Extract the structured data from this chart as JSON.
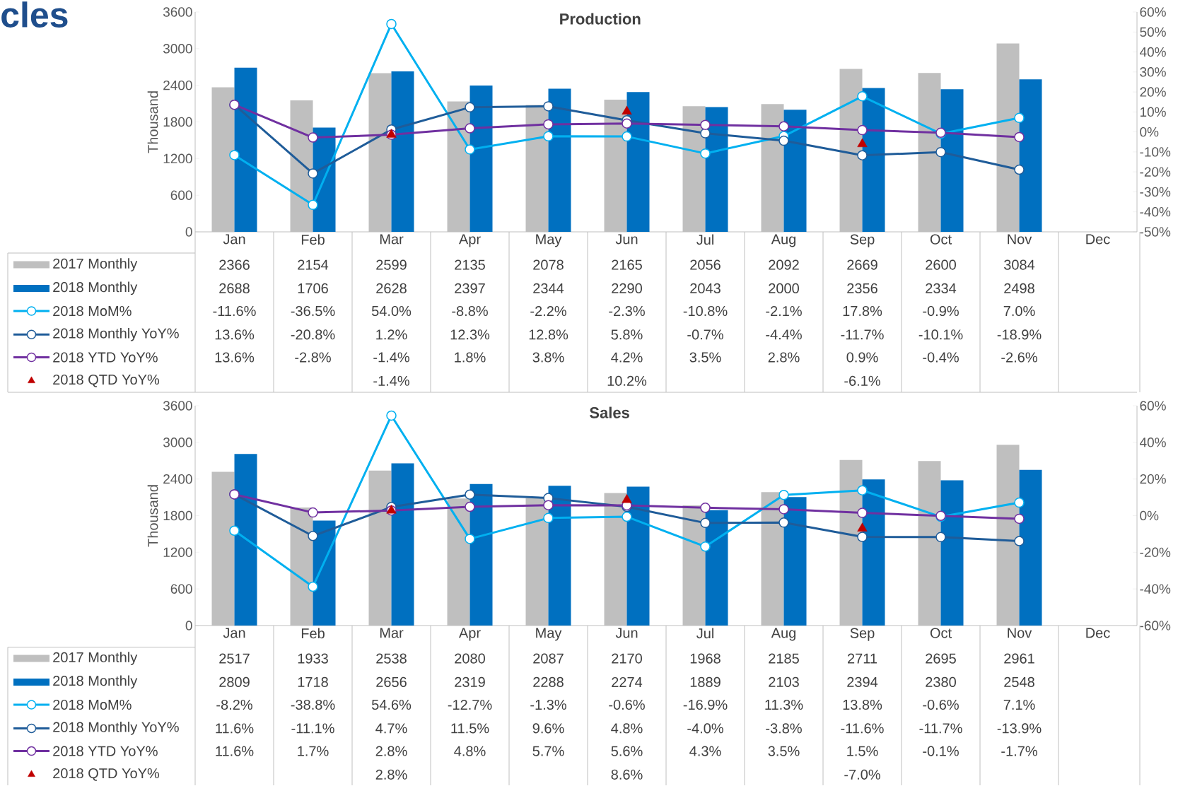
{
  "chart_data": [
    {
      "type": "bar",
      "title": "Production",
      "ylabel": "Thousand",
      "annotations": [
        "cles"
      ],
      "legend": "bottom",
      "categories": [
        "Jan",
        "Feb",
        "Mar",
        "Apr",
        "May",
        "Jun",
        "Jul",
        "Aug",
        "Sep",
        "Oct",
        "Nov",
        "Dec"
      ],
      "ylim": [
        0,
        3600
      ],
      "yticks": [
        0,
        600,
        1200,
        1800,
        2400,
        3000,
        3600
      ],
      "y2lim": [
        -50,
        60
      ],
      "y2ticks": [
        {
          "value": -50,
          "label": "-50%"
        },
        {
          "value": -40,
          "label": "-40%"
        },
        {
          "value": -30,
          "label": "-30%"
        },
        {
          "value": -20,
          "label": "-20%"
        },
        {
          "value": -10,
          "label": "-10%"
        },
        {
          "value": 0,
          "label": "0%"
        },
        {
          "value": 10,
          "label": "10%"
        },
        {
          "value": 20,
          "label": "20%"
        },
        {
          "value": 30,
          "label": "30%"
        },
        {
          "value": 40,
          "label": "40%"
        },
        {
          "value": 50,
          "label": "50%"
        },
        {
          "value": 60,
          "label": "60%"
        }
      ],
      "series": [
        {
          "name": "2017 Monthly",
          "color": "#bfbfbf",
          "values": [
            2366,
            2154,
            2599,
            2135,
            2078,
            2165,
            2056,
            2092,
            2669,
            2600,
            3084,
            null
          ],
          "value_labels": [
            "2366",
            "2154",
            "2599",
            "2135",
            "2078",
            "2165",
            "2056",
            "2092",
            "2669",
            "2600",
            "3084",
            null
          ]
        },
        {
          "name": "2018 Monthly",
          "color": "#0070c0",
          "values": [
            2688,
            1706,
            2628,
            2397,
            2344,
            2290,
            2043,
            2000,
            2356,
            2334,
            2498,
            null
          ],
          "value_labels": [
            "2688",
            "1706",
            "2628",
            "2397",
            "2344",
            "2290",
            "2043",
            "2000",
            "2356",
            "2334",
            "2498",
            null
          ]
        },
        {
          "name": "2018 MoM%",
          "type": "line",
          "axis": "y2",
          "marker": "circle",
          "color": "#00b0f0",
          "values": [
            -11.6,
            -36.5,
            54.0,
            -8.8,
            -2.2,
            -2.3,
            -10.8,
            -2.1,
            17.8,
            -0.9,
            7.0,
            null
          ],
          "value_labels": [
            "-11.6%",
            "-36.5%",
            "54.0%",
            "-8.8%",
            "-2.2%",
            "-2.3%",
            "-10.8%",
            "-2.1%",
            "17.8%",
            "-0.9%",
            "7.0%",
            null
          ]
        },
        {
          "name": "2018 Monthly YoY%",
          "type": "line",
          "axis": "y2",
          "marker": "circle",
          "color": "#1f5c99",
          "values": [
            13.6,
            -20.8,
            1.2,
            12.3,
            12.8,
            5.8,
            -0.7,
            -4.4,
            -11.7,
            -10.1,
            -18.9,
            null
          ],
          "value_labels": [
            "13.6%",
            "-20.8%",
            "1.2%",
            "12.3%",
            "12.8%",
            "5.8%",
            "-0.7%",
            "-4.4%",
            "-11.7%",
            "-10.1%",
            "-18.9%",
            null
          ]
        },
        {
          "name": "2018 YTD YoY%",
          "type": "line",
          "axis": "y2",
          "marker": "circle",
          "color": "#7030a0",
          "values": [
            13.6,
            -2.8,
            -1.4,
            1.8,
            3.8,
            4.2,
            3.5,
            2.8,
            0.9,
            -0.4,
            -2.6,
            null
          ],
          "value_labels": [
            "13.6%",
            "-2.8%",
            "-1.4%",
            "1.8%",
            "3.8%",
            "4.2%",
            "3.5%",
            "2.8%",
            "0.9%",
            "-0.4%",
            "-2.6%",
            null
          ]
        },
        {
          "name": "2018 QTD YoY%",
          "type": "scatter",
          "axis": "y2",
          "marker": "triangle",
          "color": "#c00000",
          "values": [
            null,
            null,
            -1.4,
            null,
            null,
            10.2,
            null,
            null,
            -6.1,
            null,
            null,
            null
          ],
          "value_labels": [
            null,
            null,
            "-1.4%",
            null,
            null,
            "10.2%",
            null,
            null,
            "-6.1%",
            null,
            null,
            null
          ]
        }
      ]
    },
    {
      "type": "bar",
      "title": "Sales",
      "ylabel": "Thousand",
      "legend": "bottom",
      "categories": [
        "Jan",
        "Feb",
        "Mar",
        "Apr",
        "May",
        "Jun",
        "Jul",
        "Aug",
        "Sep",
        "Oct",
        "Nov",
        "Dec"
      ],
      "ylim": [
        0,
        3600
      ],
      "yticks": [
        0,
        600,
        1200,
        1800,
        2400,
        3000,
        3600
      ],
      "y2lim": [
        -60,
        60
      ],
      "y2ticks": [
        {
          "value": -60,
          "label": "-60%"
        },
        {
          "value": -40,
          "label": "-40%"
        },
        {
          "value": -20,
          "label": "-20%"
        },
        {
          "value": 0,
          "label": "0%"
        },
        {
          "value": 20,
          "label": "20%"
        },
        {
          "value": 40,
          "label": "40%"
        },
        {
          "value": 60,
          "label": "60%"
        }
      ],
      "series": [
        {
          "name": "2017 Monthly",
          "color": "#bfbfbf",
          "values": [
            2517,
            1933,
            2538,
            2080,
            2087,
            2170,
            1968,
            2185,
            2711,
            2695,
            2961,
            null
          ],
          "value_labels": [
            "2517",
            "1933",
            "2538",
            "2080",
            "2087",
            "2170",
            "1968",
            "2185",
            "2711",
            "2695",
            "2961",
            null
          ]
        },
        {
          "name": "2018 Monthly",
          "color": "#0070c0",
          "values": [
            2809,
            1718,
            2656,
            2319,
            2288,
            2274,
            1889,
            2103,
            2394,
            2380,
            2548,
            null
          ],
          "value_labels": [
            "2809",
            "1718",
            "2656",
            "2319",
            "2288",
            "2274",
            "1889",
            "2103",
            "2394",
            "2380",
            "2548",
            null
          ]
        },
        {
          "name": "2018 MoM%",
          "type": "line",
          "axis": "y2",
          "marker": "circle",
          "color": "#00b0f0",
          "values": [
            -8.2,
            -38.8,
            54.6,
            -12.7,
            -1.3,
            -0.6,
            -16.9,
            11.3,
            13.8,
            -0.6,
            7.1,
            null
          ],
          "value_labels": [
            "-8.2%",
            "-38.8%",
            "54.6%",
            "-12.7%",
            "-1.3%",
            "-0.6%",
            "-16.9%",
            "11.3%",
            "13.8%",
            "-0.6%",
            "7.1%",
            null
          ]
        },
        {
          "name": "2018 Monthly YoY%",
          "type": "line",
          "axis": "y2",
          "marker": "circle",
          "color": "#1f5c99",
          "values": [
            11.6,
            -11.1,
            4.7,
            11.5,
            9.6,
            4.8,
            -4.0,
            -3.8,
            -11.6,
            -11.7,
            -13.9,
            null
          ],
          "value_labels": [
            "11.6%",
            "-11.1%",
            "4.7%",
            "11.5%",
            "9.6%",
            "4.8%",
            "-4.0%",
            "-3.8%",
            "-11.6%",
            "-11.7%",
            "-13.9%",
            null
          ]
        },
        {
          "name": "2018 YTD YoY%",
          "type": "line",
          "axis": "y2",
          "marker": "circle",
          "color": "#7030a0",
          "values": [
            11.6,
            1.7,
            2.8,
            4.8,
            5.7,
            5.6,
            4.3,
            3.5,
            1.5,
            -0.1,
            -1.7,
            null
          ],
          "value_labels": [
            "11.6%",
            "1.7%",
            "2.8%",
            "4.8%",
            "5.7%",
            "5.6%",
            "4.3%",
            "3.5%",
            "1.5%",
            "-0.1%",
            "-1.7%",
            null
          ]
        },
        {
          "name": "2018 QTD YoY%",
          "type": "scatter",
          "axis": "y2",
          "marker": "triangle",
          "color": "#c00000",
          "values": [
            null,
            null,
            2.8,
            null,
            null,
            8.6,
            null,
            null,
            -7.0,
            null,
            null,
            null
          ],
          "value_labels": [
            null,
            null,
            "2.8%",
            null,
            null,
            "8.6%",
            null,
            null,
            "-7.0%",
            null,
            null,
            null
          ]
        }
      ]
    }
  ]
}
